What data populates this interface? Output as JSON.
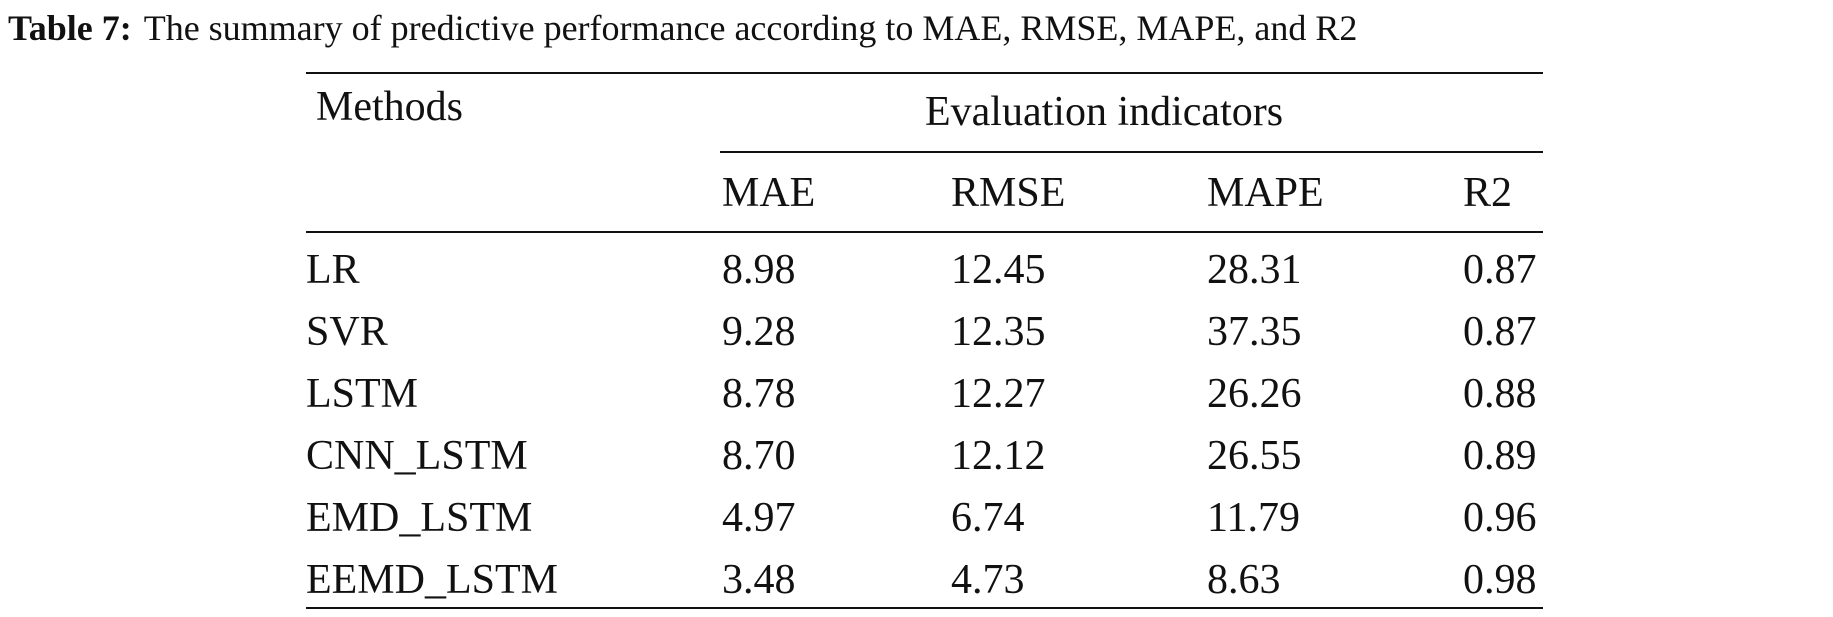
{
  "caption": {
    "label": "Table 7:",
    "text": "The summary of predictive performance according to MAE, RMSE, MAPE, and R2"
  },
  "table": {
    "methods_header": "Methods",
    "group_header": "Evaluation indicators",
    "columns": [
      "MAE",
      "RMSE",
      "MAPE",
      "R2"
    ],
    "rows": [
      {
        "method": "LR",
        "values": [
          "8.98",
          "12.45",
          "28.31",
          "0.87"
        ]
      },
      {
        "method": "SVR",
        "values": [
          "9.28",
          "12.35",
          "37.35",
          "0.87"
        ]
      },
      {
        "method": "LSTM",
        "values": [
          "8.78",
          "12.27",
          "26.26",
          "0.88"
        ]
      },
      {
        "method": "CNN_LSTM",
        "values": [
          "8.70",
          "12.12",
          "26.55",
          "0.89"
        ]
      },
      {
        "method": "EMD_LSTM",
        "values": [
          "4.97",
          "6.74",
          "11.79",
          "0.96"
        ]
      },
      {
        "method": "EEMD_LSTM",
        "values": [
          "3.48",
          "4.73",
          "8.63",
          "0.98"
        ]
      }
    ]
  }
}
